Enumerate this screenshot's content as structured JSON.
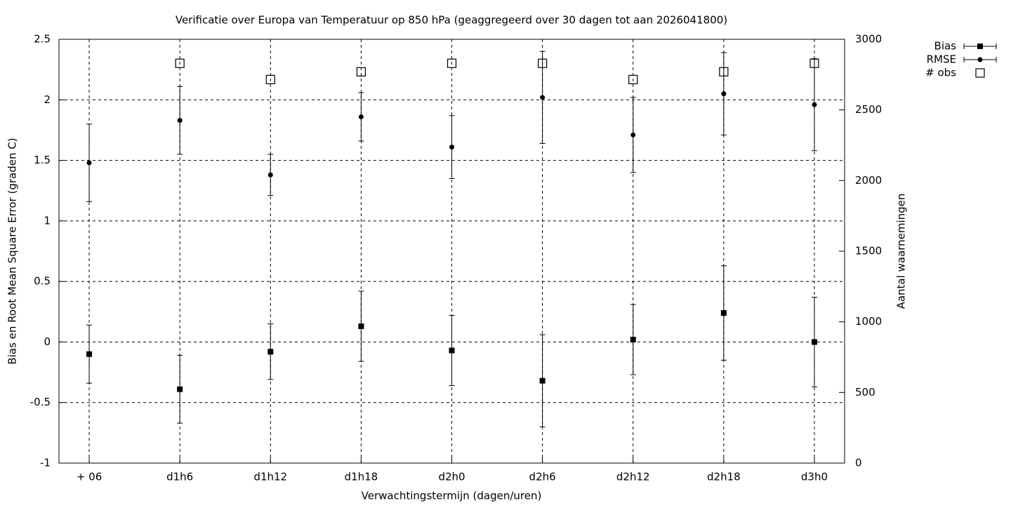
{
  "chart_data": {
    "type": "errorbar",
    "title": "Verificatie over Europa van Temperatuur op 850 hPa (geaggregeerd over 30 dagen tot aan 2026041800)",
    "x_label": "Verwachtingstermijn (dagen/uren)",
    "y_label": "Bias en Root Mean Square Error (graden C)",
    "y2_label": "Aantal waarnemingen",
    "categories": [
      "+ 06",
      "d1h6",
      "d1h12",
      "d1h18",
      "d2h0",
      "d2h6",
      "d2h12",
      "d2h18",
      "d3h0"
    ],
    "ylim": [
      -1,
      2.5
    ],
    "yticks": [
      -1,
      -0.5,
      0,
      0.5,
      1,
      1.5,
      2,
      2.5
    ],
    "y2lim": [
      0,
      3000
    ],
    "y2ticks": [
      0,
      500,
      1000,
      1500,
      2000,
      2500,
      3000
    ],
    "grid": true,
    "legend": "outside-top-right",
    "series": [
      {
        "name": "Bias",
        "color": "#000000",
        "marker": "filled-square",
        "values": [
          -0.1,
          -0.39,
          -0.08,
          0.13,
          -0.07,
          -0.32,
          0.02,
          0.24,
          0.0
        ],
        "errors": [
          0.24,
          0.28,
          0.23,
          0.29,
          0.29,
          0.38,
          0.29,
          0.39,
          0.37
        ]
      },
      {
        "name": "RMSE",
        "color": "#000000",
        "marker": "filled-circle",
        "values": [
          1.48,
          1.83,
          1.38,
          1.86,
          1.61,
          2.02,
          1.71,
          2.05,
          1.96
        ],
        "errors": [
          0.32,
          0.28,
          0.17,
          0.2,
          0.26,
          0.38,
          0.31,
          0.34,
          0.38
        ]
      },
      {
        "name": "# obs",
        "color": "#000000",
        "marker": "open-square",
        "axis": "y2",
        "values": [
          null,
          2830,
          2715,
          2770,
          2830,
          2830,
          2715,
          2770,
          2830
        ]
      }
    ]
  }
}
